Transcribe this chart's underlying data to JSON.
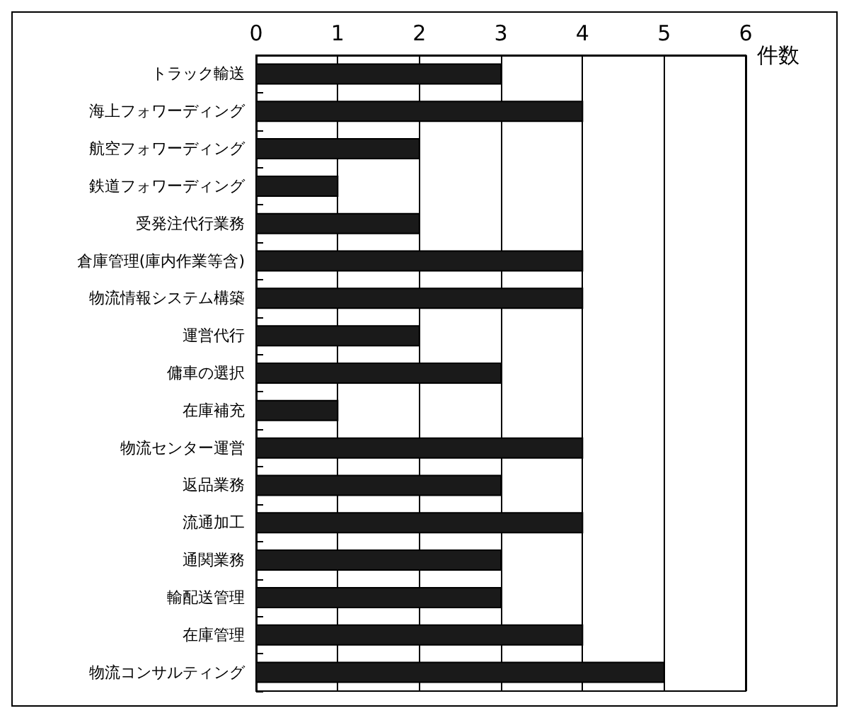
{
  "chart_data": {
    "type": "bar",
    "orientation": "horizontal",
    "xlabel": "件数",
    "categories": [
      "トラック輸送",
      "海上フォワーディング",
      "航空フォワーディング",
      "鉄道フォワーディング",
      "受発注代行業務",
      "倉庫管理(庫内作業等含)",
      "物流情報システム構築",
      "運営代行",
      "傭車の選択",
      "在庫補充",
      "物流センター運営",
      "返品業務",
      "流通加工",
      "通関業務",
      "輸配送管理",
      "在庫管理",
      "物流コンサルティング"
    ],
    "values": [
      3,
      4,
      2,
      1,
      2,
      4,
      4,
      2,
      3,
      1,
      4,
      3,
      4,
      3,
      3,
      4,
      5
    ],
    "color": "#1a1a1a",
    "xlim": [
      0,
      6
    ],
    "xticks": [
      0,
      1,
      2,
      3,
      4,
      5,
      6
    ],
    "grid": "x"
  }
}
